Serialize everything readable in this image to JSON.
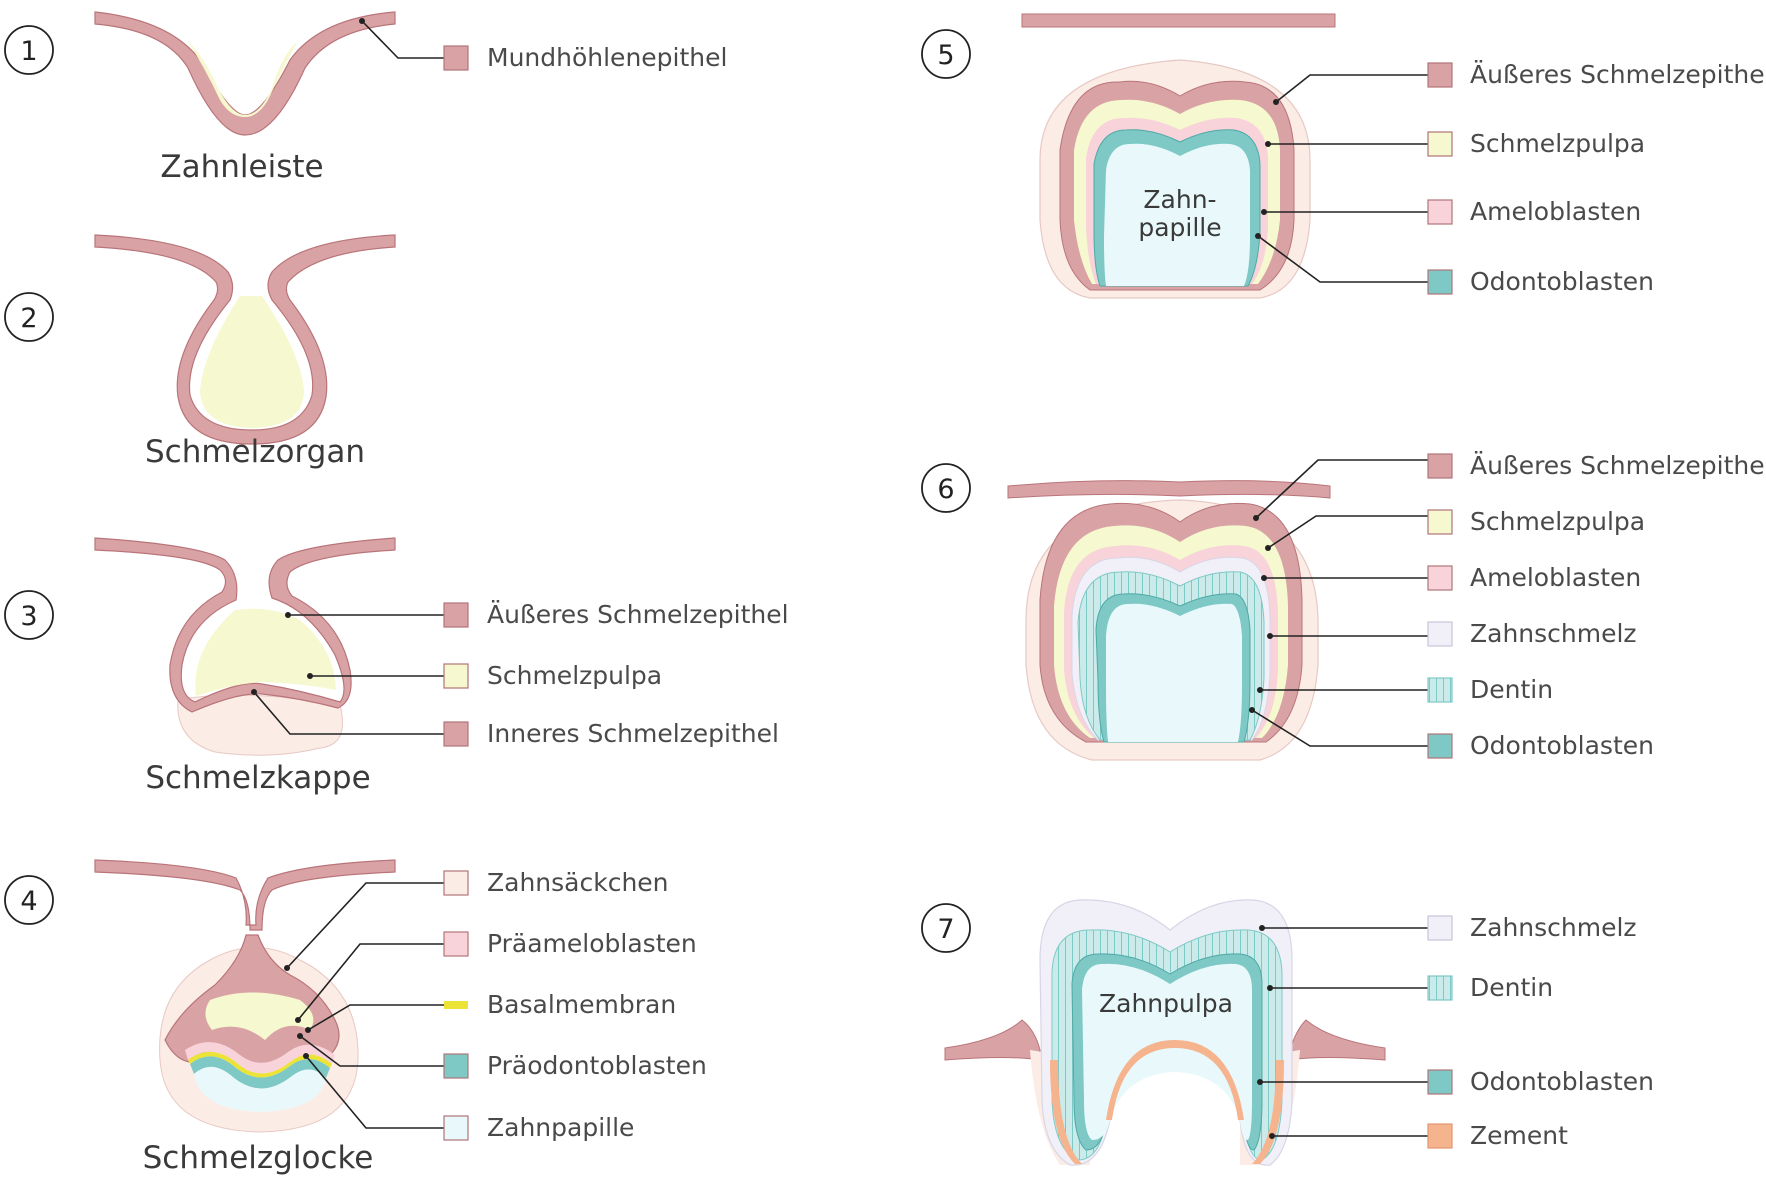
{
  "colors": {
    "epithelium": "#d9a3a5",
    "epithelium_edge": "#b97479",
    "pulp": "#f6f8cf",
    "ameloblast": "#f9d3da",
    "odontoblast": "#7ec9c6",
    "papilla": "#e9f9fb",
    "sac": "#fcece6",
    "enamel": "#f1f0f8",
    "basal": "#ebe437",
    "cement": "#f5b38e",
    "dentin": "#cbeaea"
  },
  "stages": [
    {
      "number": "1",
      "title": "Zahnleiste",
      "labels": [
        {
          "text": "Mundhöhlenepithel",
          "swatch": "epithelium"
        }
      ]
    },
    {
      "number": "2",
      "title": "Schmelzorgan",
      "labels": []
    },
    {
      "number": "3",
      "title": "Schmelzkappe",
      "labels": [
        {
          "text": "Äußeres Schmelzepithel",
          "swatch": "epithelium"
        },
        {
          "text": "Schmelzpulpa",
          "swatch": "pulp"
        },
        {
          "text": "Inneres Schmelzepithel",
          "swatch": "epithelium"
        }
      ]
    },
    {
      "number": "4",
      "title": "Schmelzglocke",
      "labels": [
        {
          "text": "Zahnsäckchen",
          "swatch": "sac"
        },
        {
          "text": "Präameloblasten",
          "swatch": "ameloblast"
        },
        {
          "text": "Basalmembran",
          "swatch": "basal"
        },
        {
          "text": "Präodontoblasten",
          "swatch": "odontoblast"
        },
        {
          "text": "Zahnpapille",
          "swatch": "papilla"
        }
      ]
    },
    {
      "number": "5",
      "title": "",
      "inner_label": [
        "Zahn-",
        "papille"
      ],
      "labels": [
        {
          "text": "Äußeres Schmelzepithel",
          "swatch": "epithelium"
        },
        {
          "text": "Schmelzpulpa",
          "swatch": "pulp"
        },
        {
          "text": "Ameloblasten",
          "swatch": "ameloblast"
        },
        {
          "text": "Odontoblasten",
          "swatch": "odontoblast"
        }
      ]
    },
    {
      "number": "6",
      "title": "",
      "labels": [
        {
          "text": "Äußeres Schmelzepithel",
          "swatch": "epithelium"
        },
        {
          "text": "Schmelzpulpa",
          "swatch": "pulp"
        },
        {
          "text": "Ameloblasten",
          "swatch": "ameloblast"
        },
        {
          "text": "Zahnschmelz",
          "swatch": "enamel"
        },
        {
          "text": "Dentin",
          "swatch": "dentin"
        },
        {
          "text": "Odontoblasten",
          "swatch": "odontoblast"
        }
      ]
    },
    {
      "number": "7",
      "title": "",
      "inner_label": [
        "Zahnpulpa"
      ],
      "labels": [
        {
          "text": "Zahnschmelz",
          "swatch": "enamel"
        },
        {
          "text": "Dentin",
          "swatch": "dentin"
        },
        {
          "text": "Odontoblasten",
          "swatch": "odontoblast"
        },
        {
          "text": "Zement",
          "swatch": "cement"
        }
      ]
    }
  ]
}
